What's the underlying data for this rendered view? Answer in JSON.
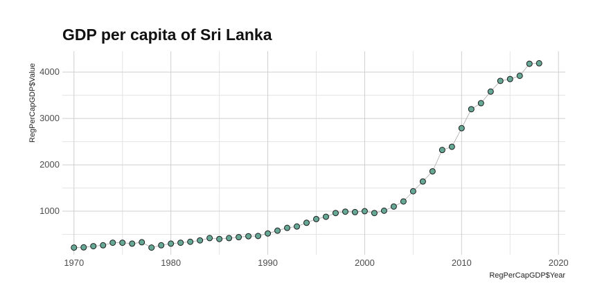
{
  "chart_data": {
    "type": "scatter",
    "title": "GDP per capita of Sri Lanka",
    "xlabel": "RegPerCapGDP$Year",
    "ylabel": "RegPerCapGDP$Value",
    "xlim": [
      1968.8,
      2020.7
    ],
    "ylim": [
      60,
      4450
    ],
    "x_ticks": [
      1970,
      1980,
      1990,
      2000,
      2010,
      2020
    ],
    "y_ticks": [
      1000,
      2000,
      3000,
      4000
    ],
    "grid": true,
    "point_color": "#66a895",
    "point_stroke": "#1a1a1a",
    "line_color": "#aaaaaa",
    "series": [
      {
        "x": [
          1970,
          1971,
          1972,
          1973,
          1974,
          1975,
          1976,
          1977,
          1978,
          1979,
          1980,
          1981,
          1982,
          1983,
          1984,
          1985,
          1986,
          1987,
          1988,
          1989,
          1990,
          1991,
          1992,
          1993,
          1994,
          1995,
          1996,
          1997,
          1998,
          1999,
          2000,
          2001,
          2002,
          2003,
          2004,
          2005,
          2006,
          2007,
          2008,
          2009,
          2010,
          2011,
          2012,
          2013,
          2014,
          2015,
          2016,
          2017,
          2018
        ],
        "y": [
          215,
          220,
          245,
          265,
          320,
          320,
          300,
          330,
          215,
          265,
          300,
          320,
          340,
          370,
          420,
          400,
          420,
          440,
          460,
          465,
          520,
          580,
          640,
          670,
          750,
          830,
          880,
          960,
          990,
          980,
          1000,
          960,
          1010,
          1100,
          1210,
          1430,
          1640,
          1860,
          2320,
          2390,
          2790,
          3200,
          3330,
          3580,
          3810,
          3850,
          3920,
          4180,
          4190
        ]
      }
    ]
  }
}
